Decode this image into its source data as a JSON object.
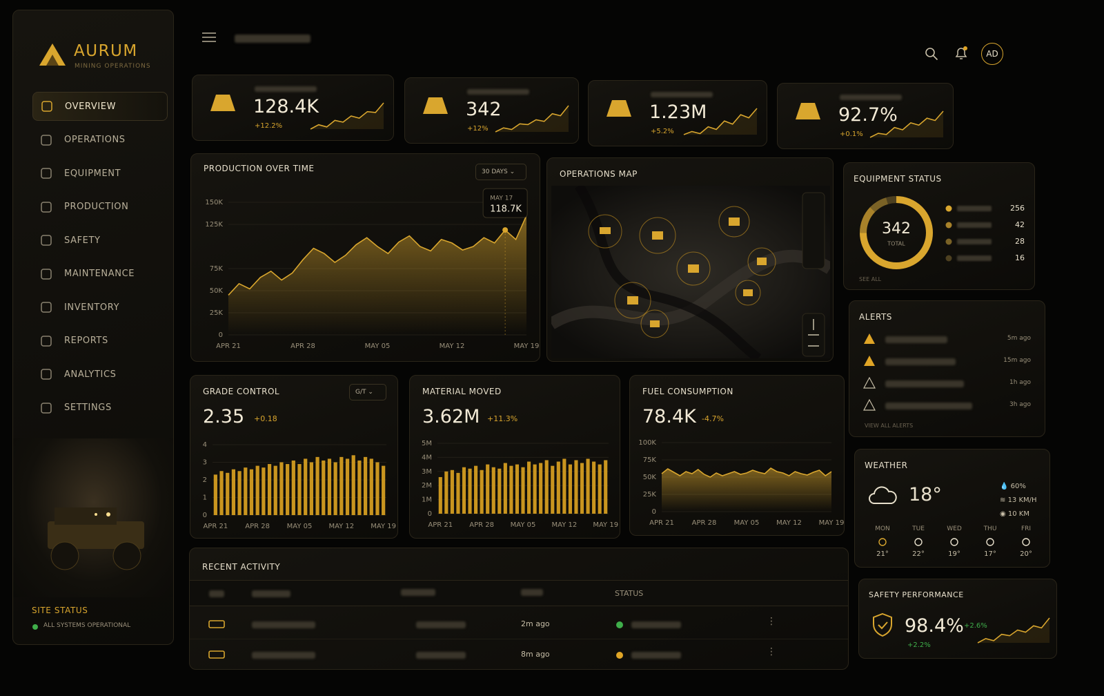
{
  "brand": {
    "name": "AURUM",
    "tagline": "MINING OPERATIONS"
  },
  "nav": [
    "OVERVIEW",
    "OPERATIONS",
    "EQUIPMENT",
    "PRODUCTION",
    "SAFETY",
    "MAINTENANCE",
    "INVENTORY",
    "REPORTS",
    "ANALYTICS",
    "SETTINGS"
  ],
  "site_status": {
    "title": "SITE STATUS",
    "message": "ALL SYSTEMS OPERATIONAL"
  },
  "user": {
    "initials": "AD"
  },
  "kpis": [
    {
      "value": "128.4K",
      "change": "+12.2%",
      "sparkline": [
        3,
        4,
        3.5,
        5,
        4.6,
        6,
        5.5,
        7,
        6.8,
        9
      ]
    },
    {
      "value": "342",
      "change": "+12%",
      "sparkline": [
        2,
        3,
        2.6,
        4,
        3.8,
        5,
        4.6,
        6.5,
        6,
        8.5
      ]
    },
    {
      "value": "1.23M",
      "change": "+5.2%",
      "sparkline": [
        3,
        3.6,
        3.2,
        4.5,
        4,
        5.6,
        5,
        6.8,
        6.2,
        8
      ]
    },
    {
      "value": "92.7%",
      "change": "+0.1%",
      "sparkline": [
        2.5,
        3.2,
        3,
        4.2,
        3.8,
        5,
        4.6,
        5.8,
        5.4,
        7
      ]
    }
  ],
  "production_chart": {
    "type": "area",
    "title": "PRODUCTION OVER TIME",
    "range": "30 DAYS",
    "color": "#d9a62e",
    "categories": [
      "APR 21",
      null,
      null,
      null,
      null,
      null,
      null,
      "APR 28",
      null,
      null,
      null,
      null,
      null,
      null,
      "MAY 05",
      null,
      null,
      null,
      null,
      null,
      null,
      "MAY 12",
      null,
      null,
      null,
      null,
      null,
      null,
      "MAY 19"
    ],
    "values": [
      45000,
      58000,
      52000,
      65000,
      72000,
      62000,
      70000,
      85000,
      98000,
      92000,
      82000,
      90000,
      102000,
      110000,
      100000,
      92000,
      105000,
      112000,
      100000,
      95000,
      108000,
      104000,
      96000,
      100000,
      110000,
      104000,
      118700,
      108000,
      135000
    ],
    "ylim": [
      0,
      150000
    ],
    "yticks": [
      0,
      {
        "value": 25000,
        "label": "25K"
      },
      {
        "value": 50000,
        "label": "50K"
      },
      {
        "value": 75000,
        "label": "75K"
      },
      {
        "value": 125000,
        "label": "125K"
      },
      {
        "value": 150000,
        "label": "150K"
      }
    ],
    "tooltip": {
      "date": "MAY 17",
      "value": "118.7K"
    }
  },
  "operations_map": {
    "title": "OPERATIONS MAP"
  },
  "equipment_status": {
    "title": "EQUIPMENT STATUS",
    "total": 342,
    "total_label": "TOTAL",
    "values": [
      256,
      42,
      28,
      16
    ],
    "colors": [
      "#d9a62e",
      "#a8822a",
      "#7a6226",
      "#4d4020"
    ],
    "link": "SEE ALL"
  },
  "alerts": {
    "title": "ALERTS",
    "times": [
      "5m ago",
      "15m ago",
      "1h ago",
      "3h ago"
    ],
    "link": "VIEW ALL ALERTS"
  },
  "grade_control": {
    "type": "bar",
    "title": "GRADE CONTROL",
    "unit": "G/T",
    "value": "2.35",
    "change": "+0.18",
    "color": "#c9951f",
    "categories": [
      "APR 21",
      null,
      null,
      null,
      null,
      null,
      null,
      "APR 28",
      null,
      null,
      null,
      null,
      null,
      null,
      "MAY 05",
      null,
      null,
      null,
      null,
      null,
      null,
      "MAY 12",
      null,
      null,
      null,
      null,
      null,
      null,
      "MAY 19"
    ],
    "values": [
      2.3,
      2.5,
      2.4,
      2.6,
      2.5,
      2.7,
      2.6,
      2.8,
      2.7,
      2.9,
      2.8,
      3.0,
      2.9,
      3.1,
      2.9,
      3.2,
      3.0,
      3.3,
      3.1,
      3.2,
      3.0,
      3.3,
      3.2,
      3.4,
      3.1,
      3.3,
      3.2,
      3.0,
      2.8
    ],
    "ylim": [
      0,
      4
    ],
    "yticks": [
      0,
      1,
      2,
      3,
      4
    ]
  },
  "material_moved": {
    "type": "bar",
    "title": "MATERIAL MOVED",
    "value": "3.62M",
    "change": "+11.3%",
    "color": "#c9951f",
    "categories": [
      "APR 21",
      null,
      null,
      null,
      null,
      null,
      null,
      "APR 28",
      null,
      null,
      null,
      null,
      null,
      null,
      "MAY 05",
      null,
      null,
      null,
      null,
      null,
      null,
      "MAY 12",
      null,
      null,
      null,
      null,
      null,
      null,
      "MAY 19"
    ],
    "values": [
      2600000,
      3000000,
      3100000,
      2900000,
      3300000,
      3200000,
      3400000,
      3100000,
      3500000,
      3300000,
      3200000,
      3600000,
      3400000,
      3500000,
      3300000,
      3700000,
      3500000,
      3600000,
      3800000,
      3400000,
      3700000,
      3900000,
      3500000,
      3800000,
      3600000,
      3900000,
      3700000,
      3500000,
      3800000
    ],
    "ylim": [
      0,
      5000000
    ],
    "yticks": [
      0,
      {
        "value": 1000000,
        "label": "1M"
      },
      {
        "value": 2000000,
        "label": "2M"
      },
      {
        "value": 3000000,
        "label": "3M"
      },
      {
        "value": 4000000,
        "label": "4M"
      },
      {
        "value": 5000000,
        "label": "5M"
      }
    ]
  },
  "fuel_consumption": {
    "type": "area",
    "title": "FUEL CONSUMPTION",
    "value": "78.4K",
    "change": "-4.7%",
    "color": "#d9a62e",
    "categories": [
      "APR 21",
      null,
      null,
      null,
      null,
      null,
      null,
      "APR 28",
      null,
      null,
      null,
      null,
      null,
      null,
      "MAY 05",
      null,
      null,
      null,
      null,
      null,
      null,
      "MAY 12",
      null,
      null,
      null,
      null,
      null,
      null,
      "MAY 19"
    ],
    "values": [
      55000,
      62000,
      57000,
      52000,
      58000,
      55000,
      61000,
      54000,
      50000,
      56000,
      52000,
      55000,
      58000,
      54000,
      56000,
      60000,
      57000,
      55000,
      63000,
      58000,
      56000,
      52000,
      58000,
      55000,
      53000,
      57000,
      60000,
      52000,
      58000
    ],
    "ylim": [
      0,
      100000
    ],
    "yticks": [
      0,
      {
        "value": 25000,
        "label": "25K"
      },
      {
        "value": 50000,
        "label": "50K"
      },
      {
        "value": 75000,
        "label": "75K"
      },
      {
        "value": 100000,
        "label": "100K"
      }
    ]
  },
  "weather": {
    "title": "WEATHER",
    "temperature": "18°",
    "humidity": "60%",
    "wind": "13 KM/H",
    "visibility": "10 KM",
    "forecast": [
      {
        "day": "MON",
        "temp": "21°"
      },
      {
        "day": "TUE",
        "temp": "22°"
      },
      {
        "day": "WED",
        "temp": "19°"
      },
      {
        "day": "THU",
        "temp": "17°"
      },
      {
        "day": "FRI",
        "temp": "20°"
      }
    ]
  },
  "safety": {
    "title": "SAFETY PERFORMANCE",
    "value": "98.4%",
    "change": "+2.6%",
    "secondary": "+2.2%",
    "sparkline": [
      2,
      2.6,
      2.3,
      3.2,
      3,
      3.8,
      3.5,
      4.4,
      4.1,
      5.5
    ]
  },
  "recent_activity": {
    "title": "RECENT ACTIVITY",
    "status_header": "STATUS",
    "rows": [
      {
        "time": "2m ago",
        "status_color": "#3fae4a"
      },
      {
        "time": "8m ago",
        "status_color": "#e0a526"
      }
    ]
  }
}
